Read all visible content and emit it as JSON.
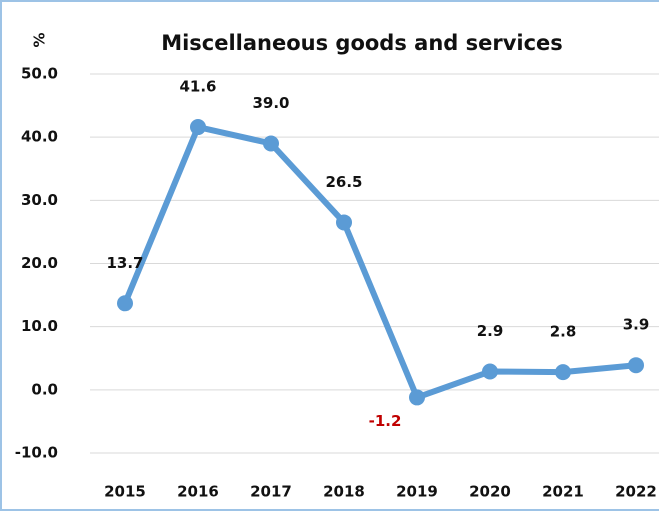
{
  "chart_data": {
    "type": "line",
    "title": "Miscellaneous goods and services",
    "y_label": "%",
    "categories": [
      "2015",
      "2016",
      "2017",
      "2018",
      "2019",
      "2020",
      "2021",
      "2022"
    ],
    "series": [
      {
        "name": "Miscellaneous goods and services",
        "color": "#5b9bd5",
        "values": [
          13.7,
          41.6,
          39.0,
          26.5,
          -1.2,
          2.9,
          2.8,
          3.9
        ],
        "value_labels": [
          "13.7",
          "41.6",
          "39.0",
          "26.5",
          "-1.2",
          "2.9",
          "2.8",
          "3.9"
        ]
      }
    ],
    "label_color": "#111111",
    "negative_label_color": "#c00000",
    "ylim": [
      -10,
      50
    ],
    "yticks": [
      {
        "value": -10,
        "label": "-10.0"
      },
      {
        "value": 0,
        "label": "0.0"
      },
      {
        "value": 10,
        "label": "10.0"
      },
      {
        "value": 20,
        "label": "20.0"
      },
      {
        "value": 30,
        "label": "30.0"
      },
      {
        "value": 40,
        "label": "40.0"
      },
      {
        "value": 50,
        "label": "50.0"
      }
    ],
    "grid": true
  }
}
